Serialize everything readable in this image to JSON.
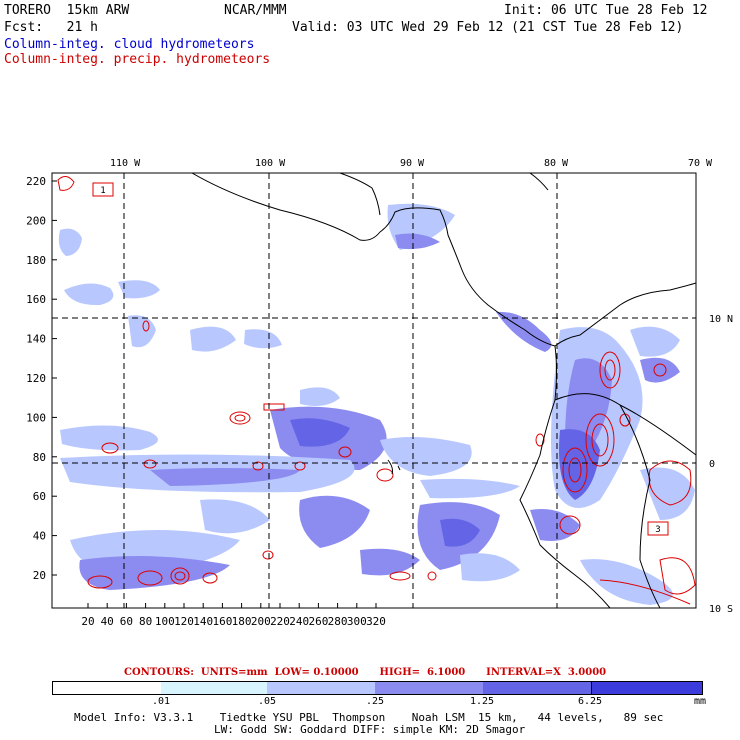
{
  "header": {
    "model": "TORERO  15km ARW",
    "center": "NCAR/MMM",
    "init": "Init: 06 UTC Tue 28 Feb 12",
    "fcst": "Fcst:   21 h",
    "valid": "Valid: 03 UTC Wed 29 Feb 12 (21 CST Tue 28 Feb 12)",
    "field1": "Column-integ. cloud hydrometeors",
    "field2": "Column-integ. precip. hydrometeors",
    "field1_color": "#0000cc",
    "field2_color": "#cc0000"
  },
  "map": {
    "top_lon_labels": [
      "110 W",
      "100 W",
      "90 W",
      "80 W",
      "70 W"
    ],
    "right_lat_labels": [
      "10 N",
      "0",
      "10 S"
    ],
    "left_y_ticks": [
      "220",
      "200",
      "180",
      "160",
      "140",
      "120",
      "100",
      "80",
      "60",
      "40",
      "20"
    ],
    "bottom_x_ticks": [
      "20",
      "40",
      "60",
      "80",
      "100",
      "120",
      "140",
      "160",
      "180",
      "200",
      "220",
      "240",
      "260",
      "280",
      "300",
      "320"
    ],
    "box_labels": [
      "1",
      "3"
    ],
    "cloud_colors": [
      "#d8f4ff",
      "#b8c8ff",
      "#8c8cf0",
      "#6464e6",
      "#3c3cdc"
    ],
    "precip_color": "#dd0000"
  },
  "contours": {
    "text": "CONTOURS:  UNITS=mm  LOW= 0.10000      HIGH=  6.1000      INTERVAL=X  3.0000"
  },
  "colorbar": {
    "ticks": [
      ".01",
      ".05",
      ".25",
      "1.25",
      "6.25"
    ],
    "unit": "mm",
    "colors": [
      "#ffffff",
      "#d8f4ff",
      "#b8c8ff",
      "#8c8cf0",
      "#6464e6",
      "#3c3cdc",
      "#1e1ee6"
    ]
  },
  "footer": {
    "line1": "Model Info: V3.3.1    Tiedtke YSU PBL  Thompson    Noah LSM  15 km,   44 levels,   89 sec",
    "line2": "LW: Godd SW: Goddard DIFF: simple KM: 2D Smagor"
  }
}
